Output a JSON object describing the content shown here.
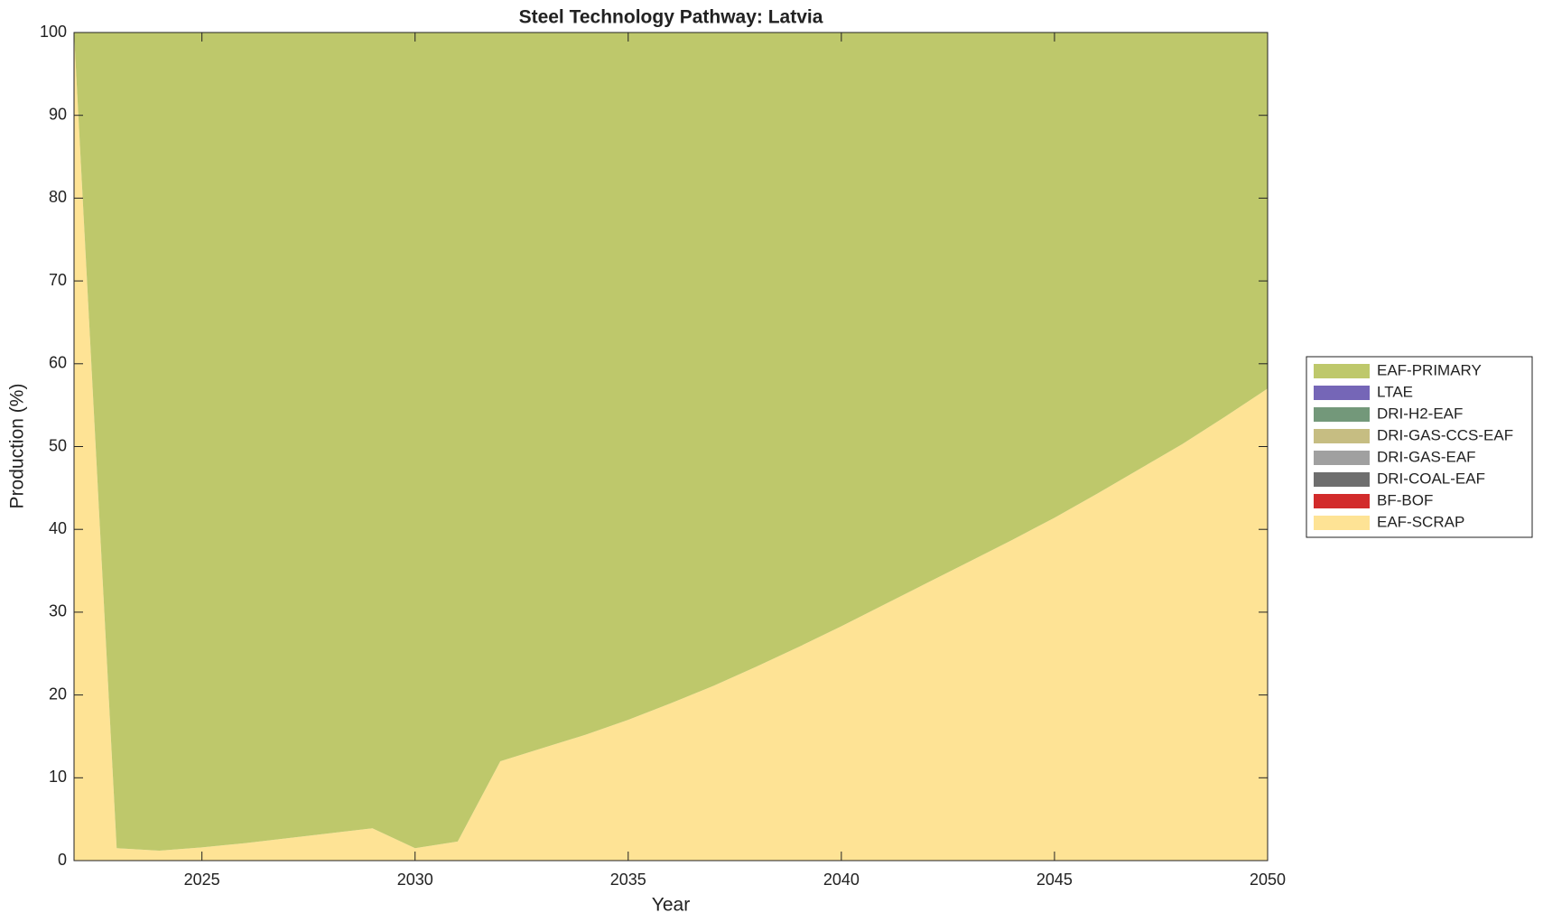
{
  "chart_data": {
    "type": "stacked-area",
    "title": "Steel Technology Pathway: Latvia",
    "x_label": "Year",
    "y_label": "Production (%)",
    "x": [
      2022,
      2023,
      2024,
      2025,
      2026,
      2027,
      2028,
      2029,
      2030,
      2031,
      2032,
      2033,
      2034,
      2035,
      2036,
      2037,
      2038,
      2039,
      2040,
      2041,
      2042,
      2043,
      2044,
      2045,
      2046,
      2047,
      2048,
      2049,
      2050
    ],
    "xlim": [
      2022,
      2050
    ],
    "xticks": [
      2025,
      2030,
      2035,
      2040,
      2045,
      2050
    ],
    "ylim": [
      0,
      100
    ],
    "yticks": [
      0,
      10,
      20,
      30,
      40,
      50,
      60,
      70,
      80,
      90,
      100
    ],
    "series": [
      {
        "name": "EAF-SCRAP",
        "color": "#fee395",
        "values": [
          100,
          1.5,
          1.2,
          1.6,
          2.1,
          2.7,
          3.3,
          3.9,
          1.5,
          2.3,
          12,
          13.6,
          15.2,
          17,
          19,
          21.1,
          23.4,
          25.8,
          28.3,
          30.9,
          33.5,
          36.1,
          38.7,
          41.4,
          44.3,
          47.3,
          50.3,
          53.6,
          57
        ]
      },
      {
        "name": "BF-BOF",
        "color": "#d22b2b",
        "values": [
          0,
          0,
          0,
          0,
          0,
          0,
          0,
          0,
          0,
          0,
          0,
          0,
          0,
          0,
          0,
          0,
          0,
          0,
          0,
          0,
          0,
          0,
          0,
          0,
          0,
          0,
          0,
          0,
          0
        ]
      },
      {
        "name": "DRI-COAL-EAF",
        "color": "#6e6e6e",
        "values": [
          0,
          0,
          0,
          0,
          0,
          0,
          0,
          0,
          0,
          0,
          0,
          0,
          0,
          0,
          0,
          0,
          0,
          0,
          0,
          0,
          0,
          0,
          0,
          0,
          0,
          0,
          0,
          0,
          0
        ]
      },
      {
        "name": "DRI-GAS-EAF",
        "color": "#a0a0a0",
        "values": [
          0,
          0,
          0,
          0,
          0,
          0,
          0,
          0,
          0,
          0,
          0,
          0,
          0,
          0,
          0,
          0,
          0,
          0,
          0,
          0,
          0,
          0,
          0,
          0,
          0,
          0,
          0,
          0,
          0
        ]
      },
      {
        "name": "DRI-GAS-CCS-EAF",
        "color": "#c6bd82",
        "values": [
          0,
          0,
          0,
          0,
          0,
          0,
          0,
          0,
          0,
          0,
          0,
          0,
          0,
          0,
          0,
          0,
          0,
          0,
          0,
          0,
          0,
          0,
          0,
          0,
          0,
          0,
          0,
          0,
          0
        ]
      },
      {
        "name": "DRI-H2-EAF",
        "color": "#73987a",
        "values": [
          0,
          0,
          0,
          0,
          0,
          0,
          0,
          0,
          0,
          0,
          0,
          0,
          0,
          0,
          0,
          0,
          0,
          0,
          0,
          0,
          0,
          0,
          0,
          0,
          0,
          0,
          0,
          0,
          0
        ]
      },
      {
        "name": "LTAE",
        "color": "#7566b7",
        "values": [
          0,
          0,
          0,
          0,
          0,
          0,
          0,
          0,
          0,
          0,
          0,
          0,
          0,
          0,
          0,
          0,
          0,
          0,
          0,
          0,
          0,
          0,
          0,
          0,
          0,
          0,
          0,
          0,
          0
        ]
      },
      {
        "name": "EAF-PRIMARY",
        "color": "#bec86b",
        "values": [
          0,
          98.5,
          98.8,
          98.4,
          97.9,
          97.3,
          96.7,
          96.1,
          98.5,
          97.7,
          88,
          86.4,
          84.8,
          83,
          81,
          78.9,
          76.6,
          74.2,
          71.7,
          69.1,
          66.5,
          63.9,
          61.3,
          58.6,
          55.7,
          52.7,
          49.7,
          46.4,
          43
        ]
      }
    ]
  }
}
